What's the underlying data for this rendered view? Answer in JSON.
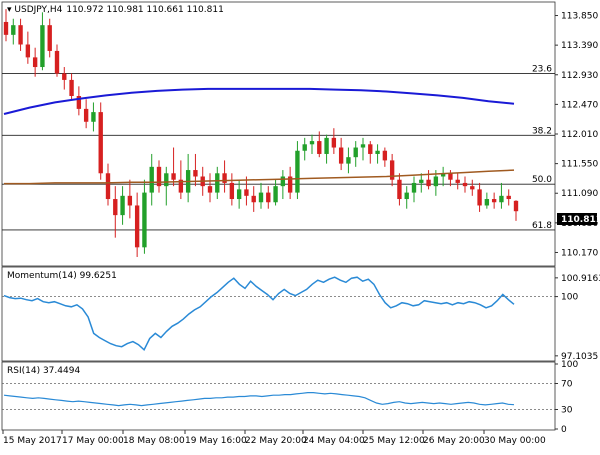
{
  "header": {
    "symbol_label": "USDJPY,H4",
    "ohlc_label": "110.972 110.981 110.661 110.811"
  },
  "price_panel": {
    "y_ticks": [
      "113.850",
      "113.390",
      "112.930",
      "112.470",
      "112.010",
      "111.550",
      "111.090",
      "110.630",
      "110.170"
    ],
    "current_price": "110.811",
    "fib_levels": [
      {
        "label": "23.6",
        "value": 112.95
      },
      {
        "label": "38.2",
        "value": 111.99
      },
      {
        "label": "50.0",
        "value": 111.23
      },
      {
        "label": "61.8",
        "value": 110.52
      }
    ],
    "ylim": [
      109.96,
      114.06
    ]
  },
  "momentum_panel": {
    "title": "Momentum(14) 99.6251",
    "y_ticks": [
      "100.9163",
      "100",
      "97.1035"
    ],
    "ylim": [
      96.9,
      101.3
    ]
  },
  "rsi_panel": {
    "title": "RSI(14) 37.4494",
    "y_ticks": [
      "100",
      "70",
      "30",
      "0"
    ],
    "ylim": [
      0,
      100
    ]
  },
  "x_axis": {
    "labels": [
      "15 May 2017",
      "17 May 00:00",
      "18 May 08:00",
      "19 May 16:00",
      "22 May 20:00",
      "24 May 04:00",
      "25 May 12:00",
      "26 May 20:00",
      "30 May 00:00"
    ]
  },
  "colors": {
    "bull": "#22a02a",
    "bear": "#d62020",
    "ma_fast": "#1a1ad6",
    "ma_slow": "#a05a20",
    "indicator": "#2a8ad6",
    "grid": "#333333"
  },
  "chart_data": [
    {
      "type": "candlestick",
      "title": "USDJPY,H4",
      "candles": [
        {
          "o": 113.75,
          "h": 113.95,
          "l": 113.45,
          "c": 113.55
        },
        {
          "o": 113.55,
          "h": 113.8,
          "l": 113.4,
          "c": 113.7
        },
        {
          "o": 113.7,
          "h": 113.8,
          "l": 113.3,
          "c": 113.4
        },
        {
          "o": 113.4,
          "h": 113.6,
          "l": 113.1,
          "c": 113.2
        },
        {
          "o": 113.2,
          "h": 113.35,
          "l": 112.9,
          "c": 113.05
        },
        {
          "o": 113.05,
          "h": 113.9,
          "l": 113.0,
          "c": 113.7
        },
        {
          "o": 113.7,
          "h": 113.8,
          "l": 113.2,
          "c": 113.3
        },
        {
          "o": 113.3,
          "h": 113.4,
          "l": 112.9,
          "c": 112.95
        },
        {
          "o": 112.95,
          "h": 113.05,
          "l": 112.7,
          "c": 112.85
        },
        {
          "o": 112.85,
          "h": 112.95,
          "l": 112.55,
          "c": 112.6
        },
        {
          "o": 112.6,
          "h": 112.75,
          "l": 112.3,
          "c": 112.4
        },
        {
          "o": 112.4,
          "h": 112.55,
          "l": 112.1,
          "c": 112.2
        },
        {
          "o": 112.2,
          "h": 112.5,
          "l": 112.05,
          "c": 112.35
        },
        {
          "o": 112.35,
          "h": 112.5,
          "l": 111.3,
          "c": 111.4
        },
        {
          "o": 111.4,
          "h": 111.55,
          "l": 110.9,
          "c": 111.0
        },
        {
          "o": 111.0,
          "h": 111.2,
          "l": 110.4,
          "c": 110.75
        },
        {
          "o": 110.75,
          "h": 111.2,
          "l": 110.6,
          "c": 111.05
        },
        {
          "o": 111.05,
          "h": 111.3,
          "l": 110.7,
          "c": 110.9
        },
        {
          "o": 110.9,
          "h": 111.1,
          "l": 110.1,
          "c": 110.25
        },
        {
          "o": 110.25,
          "h": 111.3,
          "l": 110.15,
          "c": 111.1
        },
        {
          "o": 111.1,
          "h": 111.7,
          "l": 110.9,
          "c": 111.5
        },
        {
          "o": 111.5,
          "h": 111.6,
          "l": 111.1,
          "c": 111.2
        },
        {
          "o": 111.2,
          "h": 111.5,
          "l": 110.9,
          "c": 111.4
        },
        {
          "o": 111.4,
          "h": 111.8,
          "l": 111.2,
          "c": 111.3
        },
        {
          "o": 111.3,
          "h": 111.6,
          "l": 111.0,
          "c": 111.1
        },
        {
          "o": 111.1,
          "h": 111.7,
          "l": 110.95,
          "c": 111.45
        },
        {
          "o": 111.45,
          "h": 111.7,
          "l": 111.2,
          "c": 111.35
        },
        {
          "o": 111.35,
          "h": 111.5,
          "l": 111.05,
          "c": 111.2
        },
        {
          "o": 111.2,
          "h": 111.4,
          "l": 110.95,
          "c": 111.1
        },
        {
          "o": 111.1,
          "h": 111.5,
          "l": 111.0,
          "c": 111.4
        },
        {
          "o": 111.4,
          "h": 111.6,
          "l": 111.1,
          "c": 111.25
        },
        {
          "o": 111.25,
          "h": 111.4,
          "l": 110.9,
          "c": 111.0
        },
        {
          "o": 111.0,
          "h": 111.3,
          "l": 110.85,
          "c": 111.15
        },
        {
          "o": 111.15,
          "h": 111.35,
          "l": 110.9,
          "c": 111.05
        },
        {
          "o": 111.05,
          "h": 111.2,
          "l": 110.8,
          "c": 110.95
        },
        {
          "o": 110.95,
          "h": 111.25,
          "l": 110.85,
          "c": 111.1
        },
        {
          "o": 111.1,
          "h": 111.2,
          "l": 110.85,
          "c": 110.95
        },
        {
          "o": 110.95,
          "h": 111.3,
          "l": 110.9,
          "c": 111.2
        },
        {
          "o": 111.2,
          "h": 111.45,
          "l": 111.0,
          "c": 111.35
        },
        {
          "o": 111.35,
          "h": 111.5,
          "l": 111.0,
          "c": 111.1
        },
        {
          "o": 111.1,
          "h": 111.9,
          "l": 111.0,
          "c": 111.75
        },
        {
          "o": 111.75,
          "h": 111.95,
          "l": 111.6,
          "c": 111.85
        },
        {
          "o": 111.85,
          "h": 112.0,
          "l": 111.7,
          "c": 111.9
        },
        {
          "o": 111.9,
          "h": 112.05,
          "l": 111.65,
          "c": 111.7
        },
        {
          "o": 111.7,
          "h": 112.0,
          "l": 111.55,
          "c": 111.95
        },
        {
          "o": 111.95,
          "h": 112.1,
          "l": 111.7,
          "c": 111.8
        },
        {
          "o": 111.8,
          "h": 111.95,
          "l": 111.45,
          "c": 111.55
        },
        {
          "o": 111.55,
          "h": 111.8,
          "l": 111.4,
          "c": 111.65
        },
        {
          "o": 111.65,
          "h": 111.9,
          "l": 111.5,
          "c": 111.8
        },
        {
          "o": 111.8,
          "h": 111.95,
          "l": 111.6,
          "c": 111.85
        },
        {
          "o": 111.85,
          "h": 111.9,
          "l": 111.55,
          "c": 111.7
        },
        {
          "o": 111.7,
          "h": 111.85,
          "l": 111.55,
          "c": 111.75
        },
        {
          "o": 111.75,
          "h": 111.8,
          "l": 111.5,
          "c": 111.6
        },
        {
          "o": 111.6,
          "h": 111.7,
          "l": 111.2,
          "c": 111.3
        },
        {
          "o": 111.3,
          "h": 111.4,
          "l": 110.9,
          "c": 111.0
        },
        {
          "o": 111.0,
          "h": 111.2,
          "l": 110.85,
          "c": 111.1
        },
        {
          "o": 111.1,
          "h": 111.35,
          "l": 110.95,
          "c": 111.25
        },
        {
          "o": 111.25,
          "h": 111.4,
          "l": 111.1,
          "c": 111.3
        },
        {
          "o": 111.3,
          "h": 111.45,
          "l": 111.15,
          "c": 111.2
        },
        {
          "o": 111.2,
          "h": 111.45,
          "l": 111.05,
          "c": 111.35
        },
        {
          "o": 111.35,
          "h": 111.5,
          "l": 111.2,
          "c": 111.4
        },
        {
          "o": 111.4,
          "h": 111.45,
          "l": 111.2,
          "c": 111.3
        },
        {
          "o": 111.3,
          "h": 111.4,
          "l": 111.15,
          "c": 111.25
        },
        {
          "o": 111.25,
          "h": 111.35,
          "l": 111.1,
          "c": 111.2
        },
        {
          "o": 111.2,
          "h": 111.3,
          "l": 111.05,
          "c": 111.15
        },
        {
          "o": 111.15,
          "h": 111.25,
          "l": 110.8,
          "c": 110.9
        },
        {
          "o": 110.9,
          "h": 111.1,
          "l": 110.85,
          "c": 111.0
        },
        {
          "o": 111.0,
          "h": 111.1,
          "l": 110.85,
          "c": 110.95
        },
        {
          "o": 110.95,
          "h": 111.25,
          "l": 110.85,
          "c": 111.05
        },
        {
          "o": 111.05,
          "h": 111.15,
          "l": 110.9,
          "c": 111.0
        },
        {
          "o": 110.972,
          "h": 110.981,
          "l": 110.661,
          "c": 110.811
        }
      ],
      "ma_fast": [
        112.32,
        112.42,
        112.5,
        112.56,
        112.61,
        112.65,
        112.68,
        112.7,
        112.71,
        112.71,
        112.71,
        112.71,
        112.71,
        112.7,
        112.69,
        112.67,
        112.64,
        112.61,
        112.57,
        112.52,
        112.48
      ],
      "ma_slow": [
        111.24,
        111.24,
        111.25,
        111.25,
        111.25,
        111.26,
        111.26,
        111.27,
        111.28,
        111.29,
        111.3,
        111.31,
        111.32,
        111.33,
        111.34,
        111.35,
        111.37,
        111.39,
        111.41,
        111.43,
        111.45
      ],
      "fib_levels": {
        "23.6": 112.95,
        "38.2": 111.99,
        "50.0": 111.23,
        "61.8": 110.52
      }
    },
    {
      "type": "line",
      "title": "Momentum(14) 99.6251",
      "ylim": [
        96.9,
        101.3
      ],
      "reference": 100,
      "values": [
        100.05,
        99.95,
        99.9,
        99.92,
        99.85,
        99.8,
        99.9,
        99.75,
        99.7,
        99.75,
        99.65,
        99.55,
        99.5,
        99.6,
        99.4,
        99.0,
        98.2,
        98.0,
        97.85,
        97.7,
        97.6,
        97.55,
        97.7,
        97.8,
        97.65,
        97.4,
        97.95,
        98.2,
        98.0,
        98.3,
        98.55,
        98.7,
        98.9,
        99.15,
        99.35,
        99.5,
        99.75,
        100.0,
        100.2,
        100.45,
        100.7,
        100.9,
        100.6,
        100.4,
        100.75,
        100.5,
        100.3,
        100.1,
        99.85,
        100.15,
        100.35,
        100.15,
        100.05,
        100.2,
        100.35,
        100.6,
        100.8,
        100.7,
        100.85,
        100.95,
        100.8,
        100.7,
        100.9,
        100.95,
        100.75,
        100.85,
        100.6,
        100.1,
        99.7,
        99.45,
        99.55,
        99.7,
        99.65,
        99.55,
        99.6,
        99.8,
        99.75,
        99.7,
        99.65,
        99.7,
        99.6,
        99.7,
        99.65,
        99.75,
        99.7,
        99.6,
        99.45,
        99.55,
        99.8,
        100.1,
        99.85,
        99.6251
      ]
    },
    {
      "type": "line",
      "title": "RSI(14) 37.4494",
      "ylim": [
        0,
        100
      ],
      "reference_levels": [
        70,
        30
      ],
      "values": [
        52,
        51,
        50,
        49,
        48,
        47,
        48,
        47,
        46,
        45,
        44,
        43,
        42,
        43,
        42,
        41,
        40,
        39,
        38,
        37,
        36,
        37,
        38,
        37,
        36,
        37,
        38,
        39,
        40,
        41,
        42,
        43,
        44,
        45,
        46,
        47,
        47,
        48,
        48,
        49,
        49,
        50,
        50,
        51,
        51,
        50,
        51,
        52,
        52,
        53,
        53,
        54,
        55,
        56,
        56,
        55,
        54,
        55,
        54,
        53,
        52,
        51,
        50,
        48,
        44,
        40,
        38,
        39,
        41,
        42,
        40,
        39,
        40,
        41,
        40,
        39,
        40,
        39,
        38,
        39,
        40,
        41,
        40,
        38,
        37,
        38,
        39,
        40,
        38,
        37.4494
      ]
    }
  ]
}
